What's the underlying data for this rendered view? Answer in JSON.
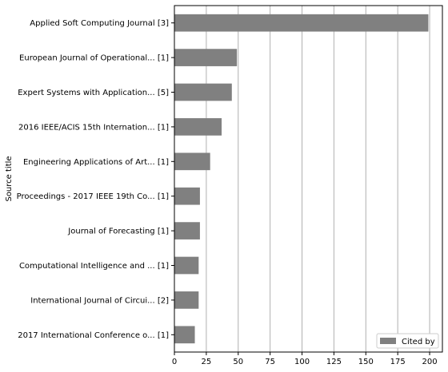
{
  "chart_data": {
    "type": "bar",
    "orientation": "horizontal",
    "categories": [
      "Applied Soft Computing Journal [3]",
      "European Journal of Operational... [1]",
      "Expert Systems with Application... [5]",
      "2016 IEEE/ACIS 15th Internation... [1]",
      "Engineering Applications of Art... [1]",
      "Proceedings - 2017 IEEE 19th Co... [1]",
      "Journal of Forecasting [1]",
      "Computational Intelligence and ... [1]",
      "International Journal of Circui... [2]",
      "2017 International Conference o... [1]"
    ],
    "series": [
      {
        "name": "Cited by",
        "values": [
          199,
          49,
          45,
          37,
          28,
          20,
          20,
          19,
          19,
          16
        ],
        "color": "#808080"
      }
    ],
    "ylabel": "Source title",
    "xlabel": "",
    "xlim": [
      0,
      210
    ],
    "xticks": [
      0,
      25,
      50,
      75,
      100,
      125,
      150,
      175,
      200
    ],
    "grid": "vertical",
    "legend_position": "bottom-right"
  }
}
